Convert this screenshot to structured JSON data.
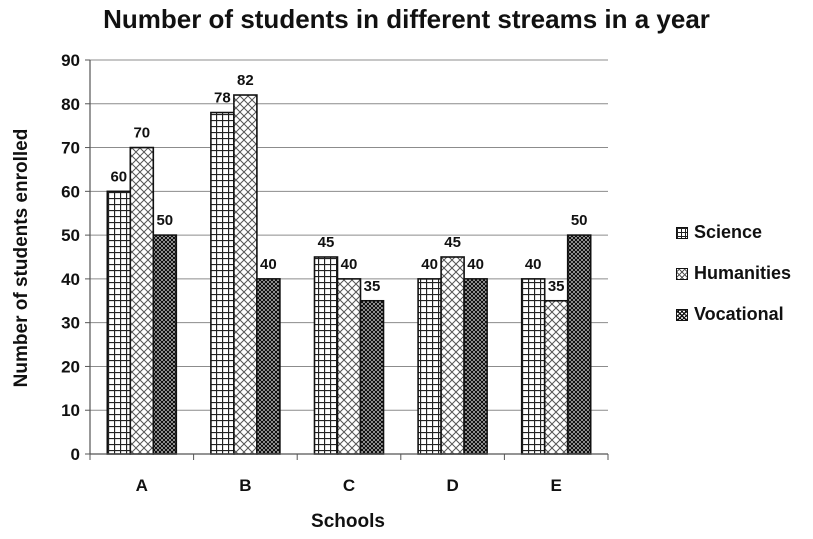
{
  "chart_data": {
    "type": "bar",
    "title": "Number of students in different streams in a year",
    "xlabel": "Schools",
    "ylabel": "Number of students enrolled",
    "categories": [
      "A",
      "B",
      "C",
      "D",
      "E"
    ],
    "series": [
      {
        "name": "Science",
        "values": [
          60,
          78,
          45,
          40,
          40
        ],
        "pattern": "grid"
      },
      {
        "name": "Humanities",
        "values": [
          70,
          82,
          40,
          45,
          35
        ],
        "pattern": "diamond"
      },
      {
        "name": "Vocational",
        "values": [
          50,
          40,
          35,
          40,
          50
        ],
        "pattern": "crosshatch"
      }
    ],
    "ylim": [
      0,
      90
    ],
    "yticks": [
      0,
      10,
      20,
      30,
      40,
      50,
      60,
      70,
      80,
      90
    ],
    "grid": true,
    "legend_position": "right",
    "colors": {
      "bar_stroke": "#111111",
      "pattern_ink": "#222222",
      "grid": "#8c8c8c",
      "axis": "#555555"
    }
  }
}
